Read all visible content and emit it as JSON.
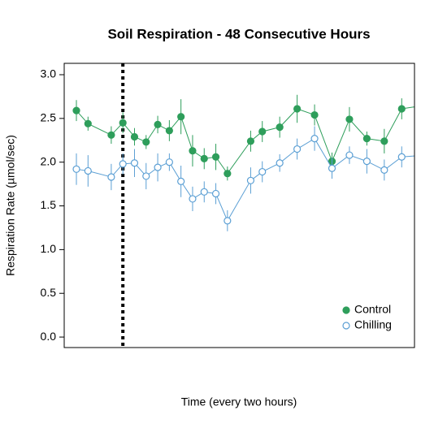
{
  "chart_data": {
    "type": "line",
    "title": "Soil Respiration - 48 Consecutive Hours",
    "xlabel": "Time (every two hours)",
    "ylabel": "Respiration Rate (µmol/sec)",
    "x": [
      1,
      2,
      4,
      5,
      6,
      7,
      8,
      9,
      10,
      11,
      12,
      13,
      14,
      16,
      17,
      18.5,
      20,
      21.5,
      23,
      24.5,
      26,
      27.5,
      29,
      31
    ],
    "series": [
      {
        "name": "Control",
        "color": "#2e9e5b",
        "marker": "filled",
        "values": [
          2.59,
          2.44,
          2.31,
          2.45,
          2.29,
          2.23,
          2.43,
          2.36,
          2.52,
          2.13,
          2.04,
          2.06,
          1.87,
          2.24,
          2.35,
          2.4,
          2.61,
          2.54,
          2.01,
          2.49,
          2.27,
          2.24,
          2.61,
          2.65
        ],
        "errors": [
          0.12,
          0.08,
          0.1,
          0.12,
          0.1,
          0.08,
          0.1,
          0.12,
          0.2,
          0.18,
          0.12,
          0.15,
          0.08,
          0.12,
          0.12,
          0.12,
          0.16,
          0.12,
          0.1,
          0.14,
          0.08,
          0.14,
          0.12,
          0.12
        ]
      },
      {
        "name": "Chilling",
        "color": "#5b9fd4",
        "marker": "open",
        "values": [
          1.92,
          1.9,
          1.83,
          1.98,
          1.99,
          1.84,
          1.94,
          2.0,
          1.78,
          1.58,
          1.66,
          1.64,
          1.33,
          1.79,
          1.89,
          1.99,
          2.15,
          2.27,
          1.93,
          2.08,
          2.01,
          1.91,
          2.06,
          2.08
        ],
        "errors": [
          0.18,
          0.18,
          0.15,
          0.12,
          0.16,
          0.15,
          0.16,
          0.1,
          0.18,
          0.14,
          0.12,
          0.12,
          0.12,
          0.15,
          0.12,
          0.1,
          0.12,
          0.14,
          0.12,
          0.1,
          0.14,
          0.12,
          0.12,
          0.12
        ]
      }
    ],
    "vline": 5,
    "xlim": [
      -0.05,
      30.1
    ],
    "ylim": [
      -0.12,
      3.13
    ],
    "yticks": [
      {
        "value": 0,
        "label": "0.0"
      },
      0.5,
      {
        "value": 1,
        "label": "1.0"
      },
      1.5,
      {
        "value": 2,
        "label": "2.0"
      },
      2.5,
      {
        "value": 3,
        "label": "3.0"
      }
    ],
    "legend": "bottom-right"
  }
}
